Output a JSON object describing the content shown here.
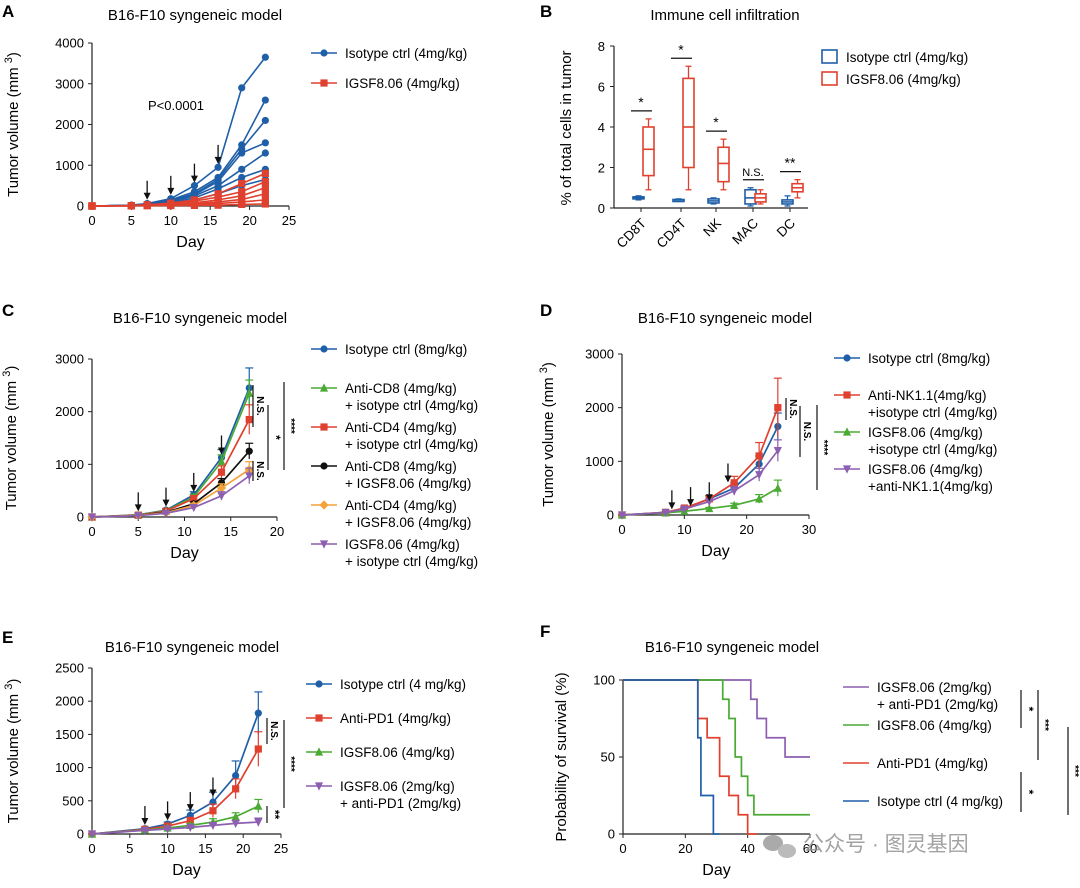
{
  "colors": {
    "blue": "#1f5fa8",
    "red": "#e0402e",
    "green": "#4aaa33",
    "black": "#111111",
    "orange": "#f4a23a",
    "purple": "#8c5fb0",
    "gray": "#999999"
  },
  "watermark": "公众号 · 图灵基因",
  "chart_data": [
    {
      "panel": "A",
      "type": "line",
      "title": "B16-F10 syngeneic model",
      "xlabel": "Day",
      "ylabel": "Tumor volume (mm 3)",
      "xlim": [
        0,
        25
      ],
      "ylim": [
        0,
        4000
      ],
      "xticks": [
        0,
        5,
        10,
        15,
        20,
        25
      ],
      "yticks": [
        0,
        1000,
        2000,
        3000,
        4000
      ],
      "annotation": "P<0.0001",
      "dosing_days": [
        7,
        10,
        13,
        16
      ],
      "legend": [
        {
          "name": "Isotype ctrl (4mg/kg)",
          "color": "blue",
          "marker": "circle"
        },
        {
          "name": "IGSF8.06 (4mg/kg)",
          "color": "red",
          "marker": "square"
        }
      ],
      "x": [
        0,
        5,
        7,
        10,
        13,
        16,
        19,
        22
      ],
      "series": [
        {
          "group": "Isotype ctrl (4mg/kg)",
          "color": "blue",
          "values": [
            0,
            20,
            60,
            180,
            500,
            950,
            2900,
            3650
          ]
        },
        {
          "group": "Isotype ctrl (4mg/kg)",
          "color": "blue",
          "values": [
            0,
            20,
            50,
            150,
            350,
            700,
            1500,
            2600
          ]
        },
        {
          "group": "Isotype ctrl (4mg/kg)",
          "color": "blue",
          "values": [
            0,
            15,
            45,
            130,
            300,
            650,
            1400,
            2100
          ]
        },
        {
          "group": "Isotype ctrl (4mg/kg)",
          "color": "blue",
          "values": [
            0,
            15,
            40,
            120,
            280,
            600,
            1300,
            1550
          ]
        },
        {
          "group": "Isotype ctrl (4mg/kg)",
          "color": "blue",
          "values": [
            0,
            15,
            40,
            100,
            250,
            500,
            900,
            1300
          ]
        },
        {
          "group": "Isotype ctrl (4mg/kg)",
          "color": "blue",
          "values": [
            0,
            10,
            30,
            80,
            200,
            420,
            700,
            900
          ]
        },
        {
          "group": "Isotype ctrl (4mg/kg)",
          "color": "blue",
          "values": [
            0,
            10,
            30,
            70,
            150,
            300,
            500,
            650
          ]
        },
        {
          "group": "IGSF8.06 (4mg/kg)",
          "color": "red",
          "values": [
            0,
            10,
            30,
            70,
            150,
            300,
            550,
            800
          ]
        },
        {
          "group": "IGSF8.06 (4mg/kg)",
          "color": "red",
          "values": [
            0,
            10,
            25,
            60,
            120,
            220,
            350,
            600
          ]
        },
        {
          "group": "IGSF8.06 (4mg/kg)",
          "color": "red",
          "values": [
            0,
            8,
            20,
            40,
            80,
            150,
            250,
            450
          ]
        },
        {
          "group": "IGSF8.06 (4mg/kg)",
          "color": "red",
          "values": [
            0,
            5,
            15,
            30,
            60,
            100,
            160,
            300
          ]
        },
        {
          "group": "IGSF8.06 (4mg/kg)",
          "color": "red",
          "values": [
            0,
            5,
            10,
            20,
            40,
            60,
            100,
            150
          ]
        },
        {
          "group": "IGSF8.06 (4mg/kg)",
          "color": "red",
          "values": [
            0,
            5,
            8,
            10,
            15,
            20,
            40,
            50
          ]
        }
      ]
    },
    {
      "panel": "B",
      "type": "box",
      "title": "Immune cell infiltration",
      "ylabel": "% of total cells in tumor",
      "ylim": [
        0,
        8
      ],
      "yticks": [
        0,
        2,
        4,
        6,
        8
      ],
      "categories": [
        "CD8T",
        "CD4T",
        "NK",
        "MAC",
        "DC"
      ],
      "significance": [
        "*",
        "*",
        "*",
        "N.S.",
        "**"
      ],
      "legend": [
        {
          "name": "Isotype ctrl (4mg/kg)",
          "color": "blue"
        },
        {
          "name": "IGSF8.06 (4mg/kg)",
          "color": "red"
        }
      ],
      "series": [
        {
          "name": "Isotype ctrl (4mg/kg)",
          "color": "blue",
          "boxes": [
            [
              0.4,
              0.45,
              0.5,
              0.55,
              0.6
            ],
            [
              0.35,
              0.38,
              0.4,
              0.42,
              0.45
            ],
            [
              0.2,
              0.25,
              0.35,
              0.45,
              0.5
            ],
            [
              0.1,
              0.2,
              0.5,
              0.9,
              1.0
            ],
            [
              0.1,
              0.2,
              0.3,
              0.4,
              0.6
            ]
          ]
        },
        {
          "name": "IGSF8.06 (4mg/kg)",
          "color": "red",
          "boxes": [
            [
              0.9,
              1.6,
              2.9,
              4.0,
              4.4
            ],
            [
              0.9,
              2.0,
              4.0,
              6.4,
              7.0
            ],
            [
              0.9,
              1.3,
              2.2,
              3.0,
              3.4
            ],
            [
              0.2,
              0.3,
              0.5,
              0.7,
              0.9
            ],
            [
              0.5,
              0.8,
              1.0,
              1.2,
              1.4
            ]
          ]
        }
      ]
    },
    {
      "panel": "C",
      "type": "line",
      "title": "B16-F10 syngeneic model",
      "xlabel": "Day",
      "ylabel": "Tumor volume (mm 3)",
      "xlim": [
        0,
        20
      ],
      "ylim": [
        0,
        3000
      ],
      "xticks": [
        0,
        5,
        10,
        15,
        20
      ],
      "yticks": [
        0,
        1000,
        2000,
        3000
      ],
      "dosing_days": [
        5,
        8,
        11,
        14
      ],
      "x": [
        0,
        5,
        8,
        11,
        14,
        17
      ],
      "significance": [
        "N.S.",
        "N.S.",
        "*",
        "****"
      ],
      "series": [
        {
          "name": "Isotype ctrl (8mg/kg)",
          "line2": "",
          "color": "blue",
          "marker": "circle",
          "values": [
            0,
            40,
            130,
            420,
            1130,
            2450
          ],
          "err": [
            0,
            10,
            20,
            60,
            150,
            380
          ]
        },
        {
          "name": "Anti-CD8 (4mg/kg)",
          "line2": "+ isotype ctrl (4mg/kg)",
          "color": "green",
          "marker": "triangle",
          "values": [
            0,
            40,
            120,
            380,
            1050,
            2350
          ],
          "err": [
            0,
            10,
            20,
            50,
            130,
            250
          ]
        },
        {
          "name": "Anti-CD4 (4mg/kg)",
          "line2": "+ isotype ctrl (4mg/kg)",
          "color": "red",
          "marker": "square",
          "values": [
            0,
            35,
            110,
            350,
            850,
            1850
          ],
          "err": [
            0,
            8,
            20,
            50,
            120,
            280
          ]
        },
        {
          "name": "Anti-CD8 (4mg/kg)",
          "line2": "+ IGSF8.06 (4mg/kg)",
          "color": "black",
          "marker": "circle",
          "values": [
            0,
            30,
            90,
            250,
            650,
            1250
          ],
          "err": [
            0,
            8,
            15,
            40,
            80,
            150
          ]
        },
        {
          "name": "Anti-CD4 (4mg/kg)",
          "line2": "+ IGSF8.06 (4mg/kg)",
          "color": "orange",
          "marker": "diamond",
          "values": [
            0,
            30,
            80,
            220,
            550,
            900
          ],
          "err": [
            0,
            8,
            15,
            40,
            80,
            150
          ]
        },
        {
          "name": "IGSF8.06 (4mg/kg)",
          "line2": "+ isotype ctrl (4mg/kg)",
          "color": "purple",
          "marker": "triangle-down",
          "values": [
            0,
            25,
            70,
            180,
            400,
            780
          ],
          "err": [
            0,
            8,
            15,
            35,
            80,
            150
          ]
        }
      ]
    },
    {
      "panel": "D",
      "type": "line",
      "title": "B16-F10 syngeneic model",
      "xlabel": "Day",
      "ylabel": "Tumor volume (mm 3)",
      "xlim": [
        0,
        30
      ],
      "ylim": [
        0,
        3000
      ],
      "xticks": [
        0,
        10,
        20,
        30
      ],
      "yticks": [
        0,
        1000,
        2000,
        3000
      ],
      "dosing_days": [
        8,
        11,
        14,
        17
      ],
      "x": [
        0,
        7,
        10,
        14,
        18,
        22,
        25
      ],
      "significance": [
        "N.S.",
        "N.S.",
        "****"
      ],
      "series": [
        {
          "name": "Isotype ctrl (8mg/kg)",
          "line2": "",
          "color": "blue",
          "marker": "circle",
          "values": [
            0,
            50,
            120,
            300,
            500,
            950,
            1650
          ],
          "err": [
            0,
            10,
            20,
            60,
            100,
            150,
            250
          ]
        },
        {
          "name": "Anti-NK1.1(4mg/kg)",
          "line2": "+isotype ctrl (4mg/kg)",
          "color": "red",
          "marker": "square",
          "values": [
            0,
            50,
            130,
            300,
            600,
            1100,
            2000
          ],
          "err": [
            0,
            10,
            25,
            60,
            120,
            250,
            550
          ]
        },
        {
          "name": "IGSF8.06 (4mg/kg)",
          "line2": "+isotype ctrl (4mg/kg)",
          "color": "green",
          "marker": "triangle",
          "values": [
            0,
            40,
            70,
            120,
            180,
            300,
            500
          ],
          "err": [
            0,
            8,
            15,
            20,
            40,
            80,
            150
          ]
        },
        {
          "name": "IGSF8.06 (4mg/kg)",
          "line2": "+anti-NK1.1(4mg/kg)",
          "color": "purple",
          "marker": "triangle-down",
          "values": [
            0,
            45,
            110,
            250,
            450,
            750,
            1200
          ],
          "err": [
            0,
            10,
            20,
            50,
            80,
            120,
            200
          ]
        }
      ]
    },
    {
      "panel": "E",
      "type": "line",
      "title": "B16-F10 syngeneic model",
      "xlabel": "Day",
      "ylabel": "Tumor volume (mm 3)",
      "xlim": [
        0,
        25
      ],
      "ylim": [
        0,
        2500
      ],
      "xticks": [
        0,
        5,
        10,
        15,
        20,
        25
      ],
      "yticks": [
        0,
        500,
        1000,
        1500,
        2000,
        2500
      ],
      "dosing_days": [
        7,
        10,
        13,
        16
      ],
      "x": [
        0,
        7,
        10,
        13,
        16,
        19,
        22
      ],
      "significance": [
        "N.S.",
        "****",
        "**"
      ],
      "series": [
        {
          "name": "Isotype ctrl (4 mg/kg)",
          "line2": "",
          "color": "blue",
          "marker": "circle",
          "values": [
            0,
            80,
            150,
            280,
            480,
            880,
            1820
          ],
          "err": [
            0,
            15,
            30,
            80,
            150,
            220,
            320
          ]
        },
        {
          "name": "Anti-PD1 (4mg/kg)",
          "line2": "",
          "color": "red",
          "marker": "square",
          "values": [
            0,
            70,
            120,
            200,
            350,
            680,
            1280
          ],
          "err": [
            0,
            15,
            30,
            50,
            100,
            150,
            260
          ]
        },
        {
          "name": "IGSF8.06 (4mg/kg)",
          "line2": "",
          "color": "green",
          "marker": "triangle",
          "values": [
            0,
            60,
            90,
            130,
            180,
            260,
            420
          ],
          "err": [
            0,
            10,
            15,
            30,
            50,
            60,
            100
          ]
        },
        {
          "name": "IGSF8.06 (2mg/kg)",
          "line2": "+ anti-PD1 (2mg/kg)",
          "color": "purple",
          "marker": "triangle-down",
          "values": [
            0,
            55,
            75,
            100,
            130,
            160,
            180
          ],
          "err": [
            0,
            10,
            15,
            20,
            30,
            40,
            60
          ]
        }
      ]
    },
    {
      "panel": "F",
      "type": "step",
      "title": "B16-F10 syngeneic model",
      "xlabel": "Day",
      "ylabel": "Probability of survival (%)",
      "xlim": [
        0,
        60
      ],
      "ylim": [
        0,
        100
      ],
      "xticks": [
        0,
        20,
        40,
        60
      ],
      "yticks": [
        0,
        50,
        100
      ],
      "significance": [
        "*",
        "***",
        "*",
        "***"
      ],
      "series": [
        {
          "name": "IGSF8.06 (2mg/kg)",
          "line2": "+ anti-PD1 (2mg/kg)",
          "color": "purple",
          "steps": [
            [
              0,
              100
            ],
            [
              41,
              100
            ],
            [
              41,
              87.5
            ],
            [
              43,
              87.5
            ],
            [
              43,
              75
            ],
            [
              46,
              75
            ],
            [
              46,
              62.5
            ],
            [
              52,
              62.5
            ],
            [
              52,
              50
            ],
            [
              60,
              50
            ]
          ]
        },
        {
          "name": "IGSF8.06 (4mg/kg)",
          "line2": "",
          "color": "green",
          "steps": [
            [
              0,
              100
            ],
            [
              32,
              100
            ],
            [
              32,
              87.5
            ],
            [
              34,
              87.5
            ],
            [
              34,
              75
            ],
            [
              36,
              75
            ],
            [
              36,
              50
            ],
            [
              38,
              50
            ],
            [
              38,
              37.5
            ],
            [
              40,
              37.5
            ],
            [
              40,
              25
            ],
            [
              42,
              25
            ],
            [
              42,
              12.5
            ],
            [
              60,
              12.5
            ]
          ]
        },
        {
          "name": "Anti-PD1 (4mg/kg)",
          "line2": "",
          "color": "red",
          "steps": [
            [
              0,
              100
            ],
            [
              24,
              100
            ],
            [
              24,
              75
            ],
            [
              27,
              75
            ],
            [
              27,
              62.5
            ],
            [
              31,
              62.5
            ],
            [
              31,
              37.5
            ],
            [
              34,
              37.5
            ],
            [
              34,
              25
            ],
            [
              37,
              25
            ],
            [
              37,
              12.5
            ],
            [
              40,
              12.5
            ],
            [
              40,
              0
            ],
            [
              43,
              0
            ]
          ]
        },
        {
          "name": "Isotype ctrl (4 mg/kg)",
          "line2": "",
          "color": "blue",
          "steps": [
            [
              0,
              100
            ],
            [
              24,
              100
            ],
            [
              24,
              62.5
            ],
            [
              25,
              62.5
            ],
            [
              25,
              25
            ],
            [
              29,
              25
            ],
            [
              29,
              0
            ],
            [
              31,
              0
            ]
          ]
        }
      ]
    }
  ]
}
